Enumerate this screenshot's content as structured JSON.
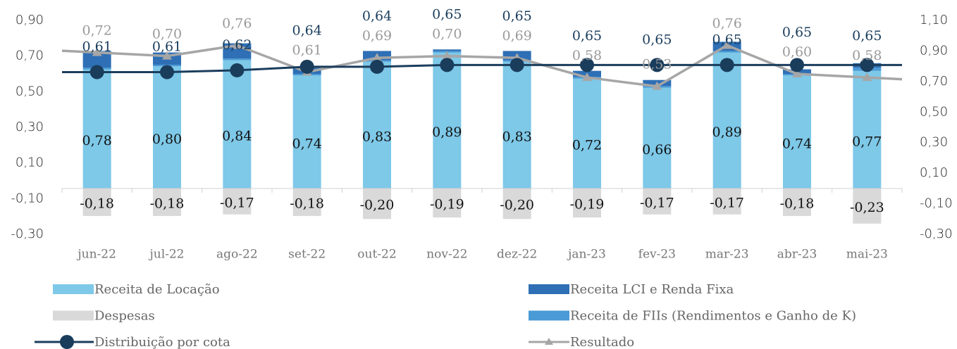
{
  "chart_data": {
    "type": "combo",
    "categories": [
      "jun-22",
      "jul-22",
      "ago-22",
      "set-22",
      "out-22",
      "nov-22",
      "dez-22",
      "jan-23",
      "fev-23",
      "mar-23",
      "abr-23",
      "mai-23"
    ],
    "ylim": [
      -0.3,
      0.9
    ],
    "yticks": [
      {
        "value": 0.9,
        "label": "0,90"
      },
      {
        "value": 0.7,
        "label": "0,70"
      },
      {
        "value": 0.5,
        "label": "0,50"
      },
      {
        "value": 0.3,
        "label": "0,30"
      },
      {
        "value": 0.1,
        "label": "0,10"
      },
      {
        "value": -0.1,
        "label": "-0,10"
      },
      {
        "value": -0.3,
        "label": "-0,30"
      }
    ],
    "y2lim": [
      -0.3,
      1.1
    ],
    "y2ticks": [
      {
        "value": 1.1,
        "label": "1,10"
      },
      {
        "value": 0.9,
        "label": "0,90"
      },
      {
        "value": 0.7,
        "label": "0,70"
      },
      {
        "value": 0.5,
        "label": "0,50"
      },
      {
        "value": 0.3,
        "label": "0,30"
      },
      {
        "value": 0.1,
        "label": "0,10"
      },
      {
        "value": -0.1,
        "label": "-0,10"
      },
      {
        "value": -0.3,
        "label": "-0,30"
      }
    ],
    "series": [
      {
        "name": "Receita de Locação",
        "kind": "bar",
        "axis": "y2",
        "color": "#7ec8e8",
        "values": [
          0.78,
          0.8,
          0.84,
          0.74,
          0.83,
          0.89,
          0.83,
          0.72,
          0.66,
          0.89,
          0.74,
          0.77
        ],
        "value_labels": [
          "0,78",
          "0,80",
          "0,84",
          "0,74",
          "0,83",
          "0,89",
          "0,83",
          "0,72",
          "0,66",
          "0,89",
          "0,74",
          "0,77"
        ]
      },
      {
        "name": "Receita LCI e Renda Fixa",
        "kind": "bar",
        "axis": "y2",
        "color": "#2e6fb5",
        "values": [
          0.11,
          0.08,
          0.1,
          0.04,
          0.06,
          0.01,
          0.06,
          0.04,
          0.04,
          0.06,
          0.03,
          0.03
        ]
      },
      {
        "name": "Despesas",
        "kind": "bar",
        "axis": "y2",
        "color": "#d9d9d9",
        "values": [
          -0.18,
          -0.18,
          -0.17,
          -0.18,
          -0.2,
          -0.19,
          -0.2,
          -0.19,
          -0.17,
          -0.17,
          -0.18,
          -0.23
        ],
        "value_labels": [
          "-0,18",
          "-0,18",
          "-0,17",
          "-0,18",
          "-0,20",
          "-0,19",
          "-0,20",
          "-0,19",
          "-0,17",
          "-0,17",
          "-0,18",
          "-0,23"
        ]
      },
      {
        "name": "Receita de FIIs (Rendimentos e Ganho de K)",
        "kind": "bar",
        "axis": "y2",
        "color": "#4a9ad6",
        "values": [
          0.01,
          0.01,
          0.01,
          0.01,
          0.01,
          0.01,
          0.01,
          0.01,
          0.01,
          0.01,
          0.01,
          0.02
        ]
      },
      {
        "name": "Distribuição por cota",
        "kind": "line",
        "marker": "circle",
        "color": "#1a3d5c",
        "values": [
          0.61,
          0.61,
          0.62,
          0.64,
          0.64,
          0.65,
          0.65,
          0.65,
          0.65,
          0.65,
          0.65,
          0.65
        ],
        "value_labels": [
          "0,61",
          "0,61",
          "0,62",
          "0,64",
          "0,64",
          "0,65",
          "0,65",
          "0,65",
          "0,65",
          "0,65",
          "0,65",
          "0,65"
        ]
      },
      {
        "name": "Resultado",
        "kind": "line",
        "marker": "triangle",
        "color": "#a6a6a6",
        "values": [
          0.72,
          0.7,
          0.76,
          0.61,
          0.69,
          0.7,
          0.69,
          0.58,
          0.53,
          0.76,
          0.6,
          0.58
        ],
        "value_labels": [
          "0,72",
          "0,70",
          "0,76",
          "0,61",
          "0,69",
          "0,70",
          "0,69",
          "0,58",
          "0,53",
          "0,76",
          "0,60",
          "0,58"
        ]
      }
    ]
  }
}
